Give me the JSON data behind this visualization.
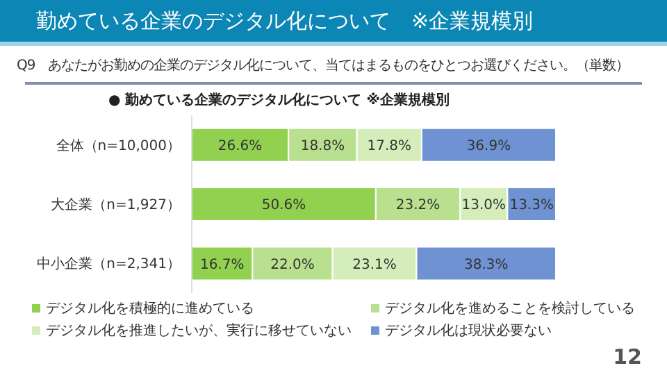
{
  "chart_data": {
    "type": "bar",
    "orientation": "horizontal",
    "stacked": true,
    "title": "勤めている企業のデジタル化について　※企業規模別",
    "subtitle": "Q9　あなたがお勤めの企業のデジタル化について、当てはまるものをひとつお選びください。（単数）",
    "annotations": [
      "●  勤めている企業のデジタル化について ※企業規模別",
      "12"
    ],
    "categories": [
      "全体（n=10,000）",
      "大企業（n=1,927）",
      "中小企業（n=2,341）"
    ],
    "series": [
      {
        "name": "デジタル化を積極的に進めている",
        "color": "#92d050",
        "values": [
          26.6,
          50.6,
          16.7
        ],
        "value_labels": [
          "26.6%",
          "50.6%",
          "16.7%"
        ]
      },
      {
        "name": "デジタル化を進めることを検討している",
        "color": "#b9e08e",
        "values": [
          18.8,
          23.2,
          22.0
        ],
        "value_labels": [
          "18.8%",
          "23.2%",
          "22.0%"
        ]
      },
      {
        "name": "デジタル化を推進したいが、実行に移せていない",
        "color": "#d5edbb",
        "values": [
          17.8,
          13.0,
          23.1
        ],
        "value_labels": [
          "17.8%",
          "13.0%",
          "23.1%"
        ]
      },
      {
        "name": "デジタル化は現状必要ない",
        "color": "#6f92d2",
        "values": [
          36.9,
          13.3,
          38.3
        ],
        "value_labels": [
          "36.9%",
          "13.3%",
          "38.3%"
        ]
      }
    ],
    "legend": "bottom"
  }
}
